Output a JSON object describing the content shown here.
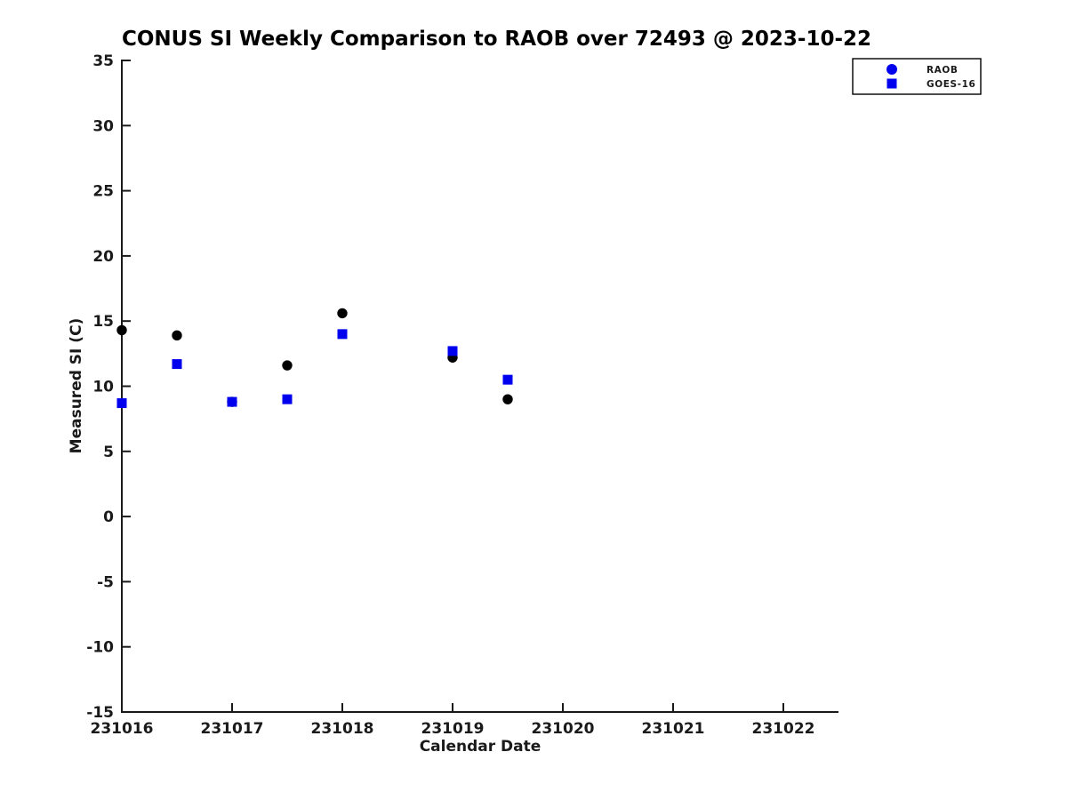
{
  "chart_data": {
    "type": "scatter",
    "title": "CONUS SI Weekly Comparison to RAOB over 72493 @ 2023-10-22",
    "xlabel": "Calendar Date",
    "ylabel": "Measured SI (C)",
    "xlim": [
      231016,
      231022.5
    ],
    "ylim": [
      -15,
      35
    ],
    "x_ticks": [
      231016,
      231017,
      231018,
      231019,
      231020,
      231021,
      231022
    ],
    "y_ticks": [
      35,
      30,
      25,
      20,
      15,
      10,
      5,
      0,
      -5,
      -10,
      -15
    ],
    "grid": false,
    "legend": {
      "position": "top-right",
      "entries": [
        "RAOB",
        "GOES-16"
      ]
    },
    "series": [
      {
        "name": "RAOB",
        "marker": "circle",
        "plot_color": "#000000",
        "legend_color": "#0000ee",
        "points": [
          [
            231016.0,
            14.3
          ],
          [
            231016.5,
            13.9
          ],
          [
            231017.0,
            8.8
          ],
          [
            231017.5,
            11.6
          ],
          [
            231018.0,
            15.6
          ],
          [
            231019.0,
            12.2
          ],
          [
            231019.5,
            9.0
          ]
        ]
      },
      {
        "name": "GOES-16",
        "marker": "square",
        "plot_color": "#0000ee",
        "legend_color": "#0000ee",
        "points": [
          [
            231016.0,
            8.7
          ],
          [
            231016.5,
            11.7
          ],
          [
            231017.0,
            8.8
          ],
          [
            231017.5,
            9.0
          ],
          [
            231018.0,
            14.0
          ],
          [
            231019.0,
            12.7
          ],
          [
            231019.5,
            10.5
          ]
        ]
      }
    ],
    "colors": {
      "background": "#ffffff",
      "axis": "#1a1a1a",
      "text": "#1a1a1a",
      "accent_blue": "#0000ee",
      "marker_black": "#000000"
    }
  }
}
